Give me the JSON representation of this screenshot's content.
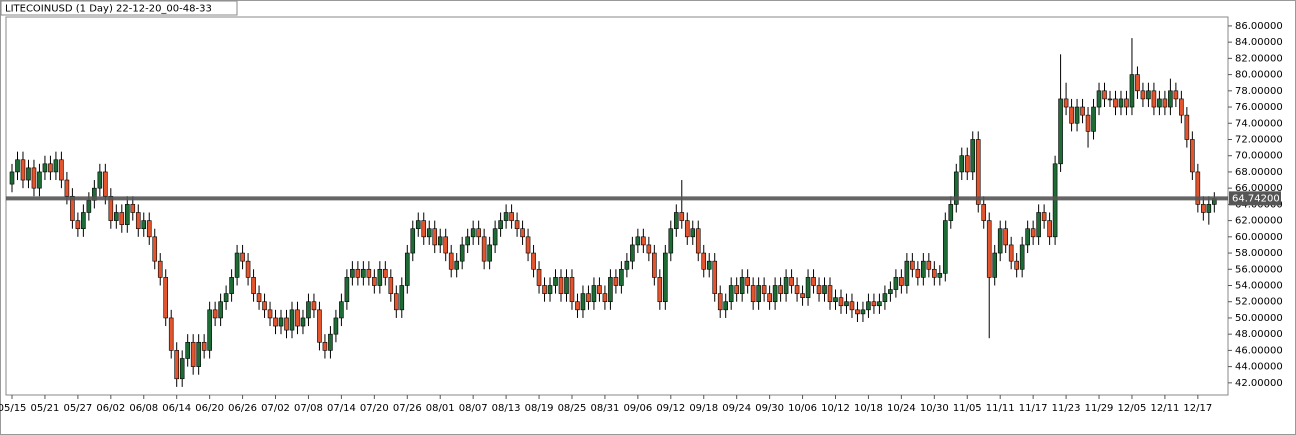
{
  "chart_data": {
    "type": "candlestick",
    "title": "LITECOINUSD (1 Day) 22-12-20_00-48-33",
    "up_color": "#1e6b35",
    "down_color": "#e2552e",
    "ylim": [
      40.5,
      87.1
    ],
    "yticks": [
      {
        "value": 42,
        "label": "42.00000"
      },
      {
        "value": 44,
        "label": "44.00000"
      },
      {
        "value": 46,
        "label": "46.00000"
      },
      {
        "value": 48,
        "label": "48.00000"
      },
      {
        "value": 50,
        "label": "50.00000"
      },
      {
        "value": 52,
        "label": "52.00000"
      },
      {
        "value": 54,
        "label": "54.00000"
      },
      {
        "value": 56,
        "label": "56.00000"
      },
      {
        "value": 58,
        "label": "58.00000"
      },
      {
        "value": 60,
        "label": "60.00000"
      },
      {
        "value": 62,
        "label": "62.00000"
      },
      {
        "value": 64,
        "label": "64.00000"
      },
      {
        "value": 66,
        "label": "66.00000"
      },
      {
        "value": 68,
        "label": "68.00000"
      },
      {
        "value": 70,
        "label": "70.00000"
      },
      {
        "value": 72,
        "label": "72.00000"
      },
      {
        "value": 74,
        "label": "74.00000"
      },
      {
        "value": 76,
        "label": "76.00000"
      },
      {
        "value": 78,
        "label": "78.00000"
      },
      {
        "value": 80,
        "label": "80.00000"
      },
      {
        "value": 82,
        "label": "82.00000"
      },
      {
        "value": 84,
        "label": "84.00000"
      },
      {
        "value": 86,
        "label": "86.00000"
      }
    ],
    "price_line": {
      "value": 64.742,
      "label": "64.74200"
    },
    "categories": [
      "05/15",
      null,
      null,
      null,
      null,
      null,
      "05/21",
      null,
      null,
      null,
      null,
      null,
      "05/27",
      null,
      null,
      null,
      null,
      null,
      "06/02",
      null,
      null,
      null,
      null,
      null,
      "06/08",
      null,
      null,
      null,
      null,
      null,
      "06/14",
      null,
      null,
      null,
      null,
      null,
      "06/20",
      null,
      null,
      null,
      null,
      null,
      "06/26",
      null,
      null,
      null,
      null,
      null,
      "07/02",
      null,
      null,
      null,
      null,
      null,
      "07/08",
      null,
      null,
      null,
      null,
      null,
      "07/14",
      null,
      null,
      null,
      null,
      null,
      "07/20",
      null,
      null,
      null,
      null,
      null,
      "07/26",
      null,
      null,
      null,
      null,
      null,
      "08/01",
      null,
      null,
      null,
      null,
      null,
      "08/07",
      null,
      null,
      null,
      null,
      null,
      "08/13",
      null,
      null,
      null,
      null,
      null,
      "08/19",
      null,
      null,
      null,
      null,
      null,
      "08/25",
      null,
      null,
      null,
      null,
      null,
      "08/31",
      null,
      null,
      null,
      null,
      null,
      "09/06",
      null,
      null,
      null,
      null,
      null,
      "09/12",
      null,
      null,
      null,
      null,
      null,
      "09/18",
      null,
      null,
      null,
      null,
      null,
      "09/24",
      null,
      null,
      null,
      null,
      null,
      "09/30",
      null,
      null,
      null,
      null,
      null,
      "10/06",
      null,
      null,
      null,
      null,
      null,
      "10/12",
      null,
      null,
      null,
      null,
      null,
      "10/18",
      null,
      null,
      null,
      null,
      null,
      "10/24",
      null,
      null,
      null,
      null,
      null,
      "10/30",
      null,
      null,
      null,
      null,
      null,
      "11/05",
      null,
      null,
      null,
      null,
      null,
      "11/11",
      null,
      null,
      null,
      null,
      null,
      "11/17",
      null,
      null,
      null,
      null,
      null,
      "11/23",
      null,
      null,
      null,
      null,
      null,
      "11/29",
      null,
      null,
      null,
      null,
      null,
      "12/05",
      null,
      null,
      null,
      null,
      null,
      "12/11",
      null,
      null,
      null,
      null,
      null,
      "12/17",
      null,
      null,
      null
    ],
    "candles": [
      [
        66.5,
        69,
        65.5,
        68
      ],
      [
        68,
        70.5,
        67,
        69.5
      ],
      [
        69.5,
        70.5,
        66,
        67
      ],
      [
        67,
        69.5,
        66,
        68.5
      ],
      [
        68.5,
        69.5,
        65,
        66
      ],
      [
        66,
        69,
        65,
        68
      ],
      [
        68,
        70,
        67,
        69
      ],
      [
        69,
        70,
        67,
        68
      ],
      [
        68,
        70.5,
        67,
        69.5
      ],
      [
        69.5,
        70.5,
        66,
        67
      ],
      [
        67,
        68,
        64,
        65
      ],
      [
        65,
        66,
        61,
        62
      ],
      [
        62,
        63,
        60,
        61
      ],
      [
        61,
        64,
        60,
        63
      ],
      [
        63,
        65.5,
        62,
        64.5
      ],
      [
        64.5,
        67,
        63.5,
        66
      ],
      [
        66,
        69,
        65,
        68
      ],
      [
        68,
        69,
        64,
        65
      ],
      [
        65,
        66,
        61,
        62
      ],
      [
        62,
        64,
        61,
        63
      ],
      [
        63,
        64,
        60.5,
        61.5
      ],
      [
        61.5,
        65,
        60.5,
        64
      ],
      [
        64,
        65,
        62,
        63
      ],
      [
        63,
        64,
        60,
        61
      ],
      [
        61,
        63,
        60,
        62
      ],
      [
        62,
        63,
        59,
        60
      ],
      [
        60,
        61,
        56,
        57
      ],
      [
        57,
        58,
        54,
        55
      ],
      [
        55,
        56,
        49,
        50
      ],
      [
        50,
        51,
        45,
        46
      ],
      [
        46,
        47,
        41.5,
        42.5
      ],
      [
        42.5,
        46,
        41.5,
        45
      ],
      [
        45,
        48,
        44,
        47
      ],
      [
        47,
        48,
        43,
        44
      ],
      [
        44,
        48,
        43,
        47
      ],
      [
        47,
        48,
        45,
        46
      ],
      [
        46,
        52,
        45,
        51
      ],
      [
        51,
        52,
        49,
        50
      ],
      [
        50,
        53,
        49,
        52
      ],
      [
        52,
        54,
        51,
        53
      ],
      [
        53,
        56,
        52,
        55
      ],
      [
        55,
        59,
        54,
        58
      ],
      [
        58,
        59,
        56,
        57
      ],
      [
        57,
        58,
        54,
        55
      ],
      [
        55,
        56,
        52,
        53
      ],
      [
        53,
        54,
        51,
        52
      ],
      [
        52,
        53,
        50,
        51
      ],
      [
        51,
        52,
        49,
        50
      ],
      [
        50,
        51,
        48,
        49
      ],
      [
        49,
        51,
        48,
        50
      ],
      [
        50,
        51,
        47.5,
        48.5
      ],
      [
        48.5,
        52,
        47.5,
        51
      ],
      [
        51,
        52,
        48,
        49
      ],
      [
        49,
        51,
        48,
        50
      ],
      [
        50,
        53,
        49,
        52
      ],
      [
        52,
        53,
        50,
        51
      ],
      [
        51,
        52,
        46,
        47
      ],
      [
        47,
        48,
        45,
        46
      ],
      [
        46,
        49,
        45,
        48
      ],
      [
        48,
        51,
        47,
        50
      ],
      [
        50,
        53,
        49,
        52
      ],
      [
        52,
        56,
        51,
        55
      ],
      [
        55,
        57,
        54,
        56
      ],
      [
        56,
        57,
        54,
        55
      ],
      [
        55,
        57,
        54,
        56
      ],
      [
        56,
        57,
        54,
        55
      ],
      [
        55,
        56,
        53,
        54
      ],
      [
        54,
        57,
        53,
        56
      ],
      [
        56,
        57,
        54,
        55
      ],
      [
        55,
        56,
        52,
        53
      ],
      [
        53,
        54,
        50,
        51
      ],
      [
        51,
        55,
        50,
        54
      ],
      [
        54,
        59,
        53,
        58
      ],
      [
        58,
        62,
        57,
        61
      ],
      [
        61,
        63,
        60,
        62
      ],
      [
        62,
        63,
        59,
        60
      ],
      [
        60,
        62,
        59,
        61
      ],
      [
        61,
        62,
        58,
        59
      ],
      [
        59,
        61,
        58,
        60
      ],
      [
        60,
        61,
        57,
        58
      ],
      [
        58,
        59,
        55,
        56
      ],
      [
        56,
        58,
        55,
        57
      ],
      [
        57,
        60,
        56,
        59
      ],
      [
        59,
        61,
        58,
        60
      ],
      [
        60,
        62,
        59,
        61
      ],
      [
        61,
        62,
        59,
        60
      ],
      [
        60,
        61,
        56,
        57
      ],
      [
        57,
        60,
        56,
        59
      ],
      [
        59,
        62,
        58,
        61
      ],
      [
        61,
        63,
        60,
        62
      ],
      [
        62,
        64,
        61,
        63
      ],
      [
        63,
        64,
        61,
        62
      ],
      [
        62,
        63,
        60,
        61
      ],
      [
        61,
        62,
        59,
        60
      ],
      [
        60,
        61,
        57,
        58
      ],
      [
        58,
        59,
        55,
        56
      ],
      [
        56,
        57,
        53,
        54
      ],
      [
        54,
        55,
        52,
        53
      ],
      [
        53,
        55,
        52,
        54
      ],
      [
        54,
        56,
        53,
        55
      ],
      [
        55,
        56,
        52,
        53
      ],
      [
        53,
        56,
        52,
        55
      ],
      [
        55,
        56,
        51,
        52
      ],
      [
        52,
        53,
        50,
        51
      ],
      [
        51,
        54,
        50,
        53
      ],
      [
        53,
        54,
        51,
        52
      ],
      [
        52,
        55,
        51,
        54
      ],
      [
        54,
        55,
        52,
        53
      ],
      [
        53,
        54,
        51,
        52
      ],
      [
        52,
        56,
        51,
        55
      ],
      [
        55,
        56,
        53,
        54
      ],
      [
        54,
        57,
        53,
        56
      ],
      [
        56,
        58,
        55,
        57
      ],
      [
        57,
        60,
        56,
        59
      ],
      [
        59,
        61,
        58,
        60
      ],
      [
        60,
        61,
        58,
        59
      ],
      [
        59,
        60,
        57,
        58
      ],
      [
        58,
        59,
        54,
        55
      ],
      [
        55,
        56,
        51,
        52
      ],
      [
        52,
        59,
        51,
        58
      ],
      [
        58,
        62,
        57,
        61
      ],
      [
        61,
        64,
        60,
        63
      ],
      [
        63,
        67,
        61,
        62
      ],
      [
        62,
        63,
        59,
        60
      ],
      [
        60,
        62,
        59,
        61
      ],
      [
        61,
        62,
        57,
        58
      ],
      [
        58,
        59,
        55,
        56
      ],
      [
        56,
        58,
        55,
        57
      ],
      [
        57,
        58,
        52,
        53
      ],
      [
        53,
        54,
        50,
        51
      ],
      [
        51,
        53,
        50,
        52
      ],
      [
        52,
        55,
        51,
        54
      ],
      [
        54,
        55,
        52,
        53
      ],
      [
        53,
        56,
        52,
        55
      ],
      [
        55,
        56,
        53,
        54
      ],
      [
        54,
        55,
        51,
        52
      ],
      [
        52,
        55,
        51,
        54
      ],
      [
        54,
        55,
        52,
        53
      ],
      [
        53,
        54,
        51,
        52
      ],
      [
        52,
        55,
        51,
        54
      ],
      [
        54,
        55,
        52,
        53
      ],
      [
        53,
        56,
        52,
        55
      ],
      [
        55,
        56,
        53,
        54
      ],
      [
        54,
        55,
        52,
        53
      ],
      [
        53,
        54,
        51.5,
        52.5
      ],
      [
        52.5,
        56,
        51.5,
        55
      ],
      [
        55,
        56,
        53,
        54
      ],
      [
        54,
        55,
        52,
        53
      ],
      [
        53,
        55,
        52,
        54
      ],
      [
        54,
        55,
        51,
        52
      ],
      [
        52,
        53.5,
        51,
        52.5
      ],
      [
        52.5,
        53.5,
        50.5,
        51.5
      ],
      [
        51.5,
        53,
        50.5,
        52
      ],
      [
        52,
        53,
        50,
        51
      ],
      [
        51,
        52,
        49.5,
        50.5
      ],
      [
        50.5,
        52,
        49.5,
        51
      ],
      [
        51,
        53,
        50,
        52
      ],
      [
        52,
        53,
        50.5,
        51.5
      ],
      [
        51.5,
        53,
        50.5,
        52
      ],
      [
        52,
        54,
        51,
        53
      ],
      [
        53,
        54.5,
        52,
        53.5
      ],
      [
        53.5,
        56,
        52.5,
        55
      ],
      [
        55,
        56,
        53,
        54
      ],
      [
        54,
        58,
        53,
        57
      ],
      [
        57,
        58,
        55,
        56
      ],
      [
        56,
        57,
        54,
        55
      ],
      [
        55,
        58,
        54,
        57
      ],
      [
        57,
        58,
        55,
        56
      ],
      [
        56,
        57,
        54,
        55
      ],
      [
        55,
        56.5,
        54,
        55.5
      ],
      [
        55.5,
        63,
        54.5,
        62
      ],
      [
        62,
        65,
        61,
        64
      ],
      [
        64,
        69,
        63,
        68
      ],
      [
        68,
        71,
        67,
        70
      ],
      [
        70,
        71,
        67,
        68
      ],
      [
        68,
        73,
        67,
        72
      ],
      [
        72,
        73,
        63,
        64
      ],
      [
        64,
        65,
        61,
        62
      ],
      [
        62,
        63,
        47.5,
        55
      ],
      [
        55,
        59,
        54,
        58
      ],
      [
        58,
        62,
        57,
        61
      ],
      [
        61,
        62,
        58,
        59
      ],
      [
        59,
        60,
        56,
        57
      ],
      [
        57,
        58,
        55,
        56
      ],
      [
        56,
        60,
        55,
        59
      ],
      [
        59,
        62,
        58,
        61
      ],
      [
        61,
        62,
        59,
        60
      ],
      [
        60,
        64,
        59,
        63
      ],
      [
        63,
        64,
        61,
        62
      ],
      [
        62,
        63,
        59,
        60
      ],
      [
        60,
        70,
        59,
        69
      ],
      [
        69,
        82.5,
        68,
        77
      ],
      [
        77,
        79,
        75,
        76
      ],
      [
        76,
        77,
        73,
        74
      ],
      [
        74,
        77,
        73,
        76
      ],
      [
        76,
        77,
        74,
        75
      ],
      [
        75,
        76,
        71,
        73
      ],
      [
        73,
        77,
        72,
        76
      ],
      [
        76,
        79,
        75,
        78
      ],
      [
        78,
        79,
        76,
        77
      ],
      [
        77,
        78,
        76,
        77
      ],
      [
        77,
        78,
        75,
        76
      ],
      [
        76,
        78,
        75,
        77
      ],
      [
        77,
        78,
        75,
        76
      ],
      [
        76,
        84.5,
        75,
        80
      ],
      [
        80,
        81,
        77,
        78
      ],
      [
        78,
        79,
        76,
        77
      ],
      [
        77,
        79,
        76,
        78
      ],
      [
        78,
        79,
        75,
        76
      ],
      [
        76,
        78,
        75,
        77
      ],
      [
        77,
        78,
        75,
        76
      ],
      [
        76,
        79.5,
        75,
        78
      ],
      [
        78,
        79,
        76,
        77
      ],
      [
        77,
        78,
        74,
        75
      ],
      [
        75,
        76,
        71,
        72
      ],
      [
        72,
        73,
        67,
        68
      ],
      [
        68,
        69,
        63,
        64
      ],
      [
        64,
        65,
        62,
        63
      ],
      [
        63,
        65,
        61.5,
        64
      ],
      [
        64,
        65.5,
        63,
        64.7
      ]
    ]
  }
}
